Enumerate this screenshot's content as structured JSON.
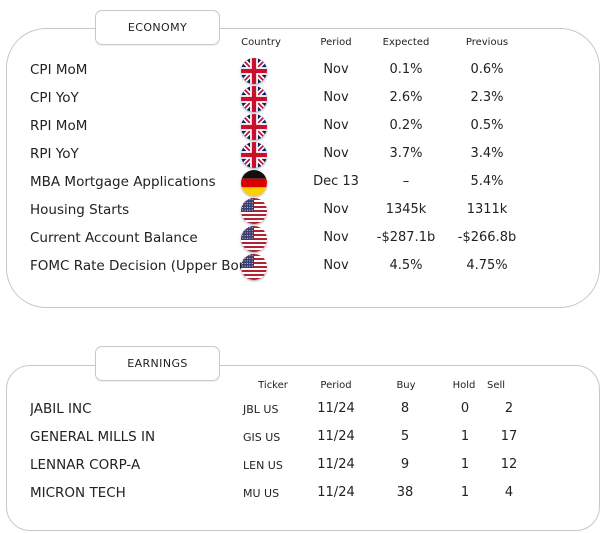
{
  "economy": {
    "tab_label": "ECONOMY",
    "columns": {
      "country": "Country",
      "period": "Period",
      "expected": "Expected",
      "previous": "Previous"
    },
    "rows": [
      {
        "name": "CPI MoM",
        "flag": "uk-flag-icon",
        "period": "Nov",
        "expected": "0.1%",
        "previous": "0.6%"
      },
      {
        "name": "CPI YoY",
        "flag": "uk-flag-icon",
        "period": "Nov",
        "expected": "2.6%",
        "previous": "2.3%"
      },
      {
        "name": "RPI MoM",
        "flag": "uk-flag-icon",
        "period": "Nov",
        "expected": "0.2%",
        "previous": "0.5%"
      },
      {
        "name": "RPI YoY",
        "flag": "uk-flag-icon",
        "period": "Nov",
        "expected": "3.7%",
        "previous": "3.4%"
      },
      {
        "name": "MBA Mortgage Applications",
        "flag": "germany-flag-icon",
        "period": "Dec 13",
        "expected": "–",
        "previous": "5.4%"
      },
      {
        "name": "Housing Starts",
        "flag": "us-flag-icon",
        "period": "Nov",
        "expected": "1345k",
        "previous": "1311k"
      },
      {
        "name": "Current Account Balance",
        "flag": "us-flag-icon",
        "period": "Nov",
        "expected": "-$287.1b",
        "previous": "-$266.8b"
      },
      {
        "name": "FOMC Rate Decision (Upper Bound)",
        "flag": "us-flag-icon",
        "period": "Nov",
        "expected": "4.5%",
        "previous": "4.75%"
      }
    ]
  },
  "earnings": {
    "tab_label": "EARNINGS",
    "columns": {
      "ticker": "Ticker",
      "period": "Period",
      "buy": "Buy",
      "hold": "Hold",
      "sell": "Sell"
    },
    "rows": [
      {
        "name": "JABIL INC",
        "ticker": "JBL US",
        "period": "11/24",
        "buy": "8",
        "hold": "0",
        "sell": "2"
      },
      {
        "name": "GENERAL MILLS IN",
        "ticker": "GIS US",
        "period": "11/24",
        "buy": "5",
        "hold": "1",
        "sell": "17"
      },
      {
        "name": "LENNAR CORP-A",
        "ticker": "LEN US",
        "period": "11/24",
        "buy": "9",
        "hold": "1",
        "sell": "12"
      },
      {
        "name": "MICRON TECH",
        "ticker": "MU US",
        "period": "11/24",
        "buy": "38",
        "hold": "1",
        "sell": "4"
      }
    ]
  }
}
